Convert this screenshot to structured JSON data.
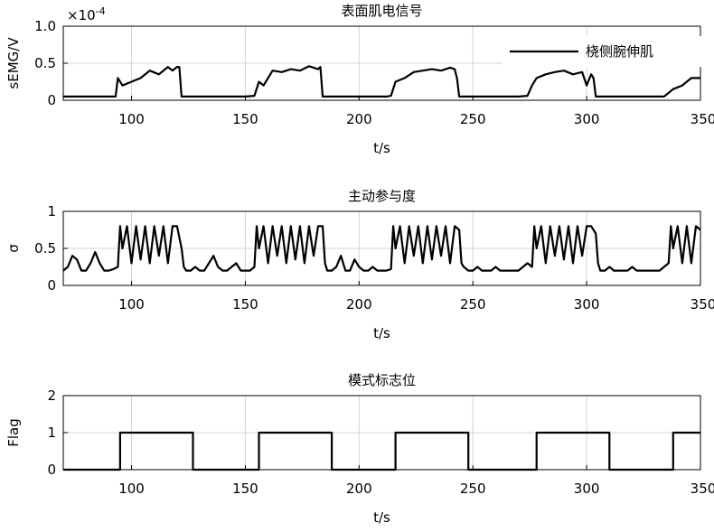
{
  "chart_data": [
    {
      "type": "line",
      "title": "表面肌电信号",
      "xlabel": "t/s",
      "ylabel": "sEMG/V",
      "exponent_label": "×10",
      "exponent_power": "-4",
      "xlim": [
        70,
        350
      ],
      "ylim": [
        0,
        1.0
      ],
      "xticks": [
        "100",
        "150",
        "200",
        "250",
        "300",
        "350"
      ],
      "yticks": [
        "0",
        "0.5",
        "1.0"
      ],
      "legend": {
        "position": "top-right",
        "entries": [
          "桡侧腕伸肌"
        ]
      },
      "grid": true,
      "series": [
        {
          "name": "桡侧腕伸肌",
          "x": [
            70,
            93,
            94,
            96,
            100,
            104,
            108,
            112,
            116,
            118,
            120,
            121,
            122,
            150,
            154,
            156,
            158,
            162,
            166,
            170,
            174,
            178,
            182,
            183,
            184,
            212,
            214,
            216,
            220,
            224,
            228,
            232,
            236,
            240,
            242,
            243,
            244,
            270,
            274,
            276,
            278,
            282,
            286,
            290,
            294,
            298,
            300,
            302,
            303,
            304,
            334,
            336,
            338,
            342,
            346,
            350
          ],
          "y": [
            0.05,
            0.05,
            0.3,
            0.2,
            0.25,
            0.3,
            0.4,
            0.35,
            0.45,
            0.4,
            0.45,
            0.45,
            0.05,
            0.05,
            0.06,
            0.25,
            0.2,
            0.4,
            0.38,
            0.42,
            0.4,
            0.46,
            0.42,
            0.45,
            0.05,
            0.05,
            0.06,
            0.25,
            0.3,
            0.38,
            0.4,
            0.42,
            0.4,
            0.44,
            0.42,
            0.3,
            0.05,
            0.05,
            0.06,
            0.2,
            0.3,
            0.35,
            0.38,
            0.4,
            0.35,
            0.38,
            0.2,
            0.35,
            0.3,
            0.05,
            0.05,
            0.1,
            0.15,
            0.2,
            0.3,
            0.3
          ]
        }
      ]
    },
    {
      "type": "line",
      "title": "主动参与度",
      "xlabel": "t/s",
      "ylabel": "σ",
      "xlim": [
        70,
        350
      ],
      "ylim": [
        0,
        1
      ],
      "xticks": [
        "100",
        "150",
        "200",
        "250",
        "300",
        "350"
      ],
      "yticks": [
        "0",
        "0.5",
        "1"
      ],
      "grid": true,
      "series": [
        {
          "x": [
            70,
            72,
            74,
            76,
            78,
            80,
            82,
            84,
            86,
            88,
            90,
            92,
            94,
            95,
            96,
            98,
            100,
            102,
            104,
            106,
            108,
            110,
            112,
            114,
            116,
            118,
            120,
            122,
            123,
            124,
            126,
            128,
            130,
            132,
            134,
            136,
            138,
            140,
            142,
            144,
            146,
            148,
            150,
            152,
            154,
            155,
            156,
            158,
            160,
            162,
            164,
            166,
            168,
            170,
            172,
            174,
            176,
            178,
            180,
            182,
            184,
            185,
            186,
            188,
            190,
            192,
            194,
            196,
            198,
            200,
            202,
            204,
            206,
            208,
            210,
            212,
            214,
            215,
            216,
            218,
            220,
            222,
            224,
            226,
            228,
            230,
            232,
            234,
            236,
            238,
            240,
            242,
            244,
            245,
            246,
            248,
            250,
            252,
            254,
            256,
            258,
            260,
            262,
            264,
            266,
            268,
            270,
            272,
            274,
            276,
            277,
            278,
            280,
            282,
            284,
            286,
            288,
            290,
            292,
            294,
            296,
            298,
            300,
            302,
            304,
            305,
            306,
            308,
            310,
            312,
            314,
            316,
            318,
            320,
            322,
            324,
            326,
            328,
            330,
            332,
            334,
            336,
            337,
            338,
            340,
            342,
            344,
            346,
            348,
            350
          ],
          "y": [
            0.2,
            0.25,
            0.4,
            0.35,
            0.2,
            0.2,
            0.3,
            0.45,
            0.3,
            0.2,
            0.2,
            0.22,
            0.25,
            0.8,
            0.5,
            0.8,
            0.3,
            0.8,
            0.35,
            0.8,
            0.3,
            0.8,
            0.4,
            0.8,
            0.3,
            0.8,
            0.8,
            0.5,
            0.25,
            0.2,
            0.2,
            0.25,
            0.2,
            0.2,
            0.3,
            0.4,
            0.25,
            0.2,
            0.2,
            0.25,
            0.3,
            0.2,
            0.2,
            0.2,
            0.25,
            0.8,
            0.5,
            0.8,
            0.3,
            0.8,
            0.4,
            0.8,
            0.3,
            0.8,
            0.35,
            0.8,
            0.3,
            0.8,
            0.4,
            0.8,
            0.8,
            0.3,
            0.2,
            0.2,
            0.25,
            0.4,
            0.2,
            0.2,
            0.35,
            0.25,
            0.2,
            0.2,
            0.25,
            0.2,
            0.2,
            0.2,
            0.22,
            0.8,
            0.5,
            0.8,
            0.3,
            0.8,
            0.4,
            0.8,
            0.3,
            0.8,
            0.35,
            0.8,
            0.4,
            0.8,
            0.3,
            0.8,
            0.75,
            0.3,
            0.25,
            0.2,
            0.2,
            0.25,
            0.2,
            0.2,
            0.2,
            0.25,
            0.2,
            0.2,
            0.2,
            0.2,
            0.2,
            0.25,
            0.3,
            0.25,
            0.8,
            0.5,
            0.8,
            0.3,
            0.8,
            0.4,
            0.8,
            0.35,
            0.8,
            0.3,
            0.8,
            0.4,
            0.8,
            0.8,
            0.7,
            0.3,
            0.2,
            0.2,
            0.25,
            0.2,
            0.2,
            0.2,
            0.2,
            0.25,
            0.2,
            0.2,
            0.2,
            0.2,
            0.2,
            0.2,
            0.25,
            0.3,
            0.8,
            0.5,
            0.8,
            0.3,
            0.8,
            0.3,
            0.8,
            0.75
          ]
        }
      ]
    },
    {
      "type": "line",
      "title": "模式标志位",
      "xlabel": "t/s",
      "ylabel": "Flag",
      "xlim": [
        70,
        350
      ],
      "ylim": [
        0,
        2
      ],
      "xticks": [
        "100",
        "150",
        "200",
        "250",
        "300",
        "350"
      ],
      "yticks": [
        "0",
        "1",
        "2"
      ],
      "grid": true,
      "series": [
        {
          "x": [
            70,
            95,
            95,
            127,
            127,
            156,
            156,
            188,
            188,
            216,
            216,
            248,
            248,
            278,
            278,
            310,
            310,
            338,
            338,
            350
          ],
          "y": [
            0,
            0,
            1,
            1,
            0,
            0,
            1,
            1,
            0,
            0,
            1,
            1,
            0,
            0,
            1,
            1,
            0,
            0,
            1,
            1
          ]
        }
      ]
    }
  ]
}
